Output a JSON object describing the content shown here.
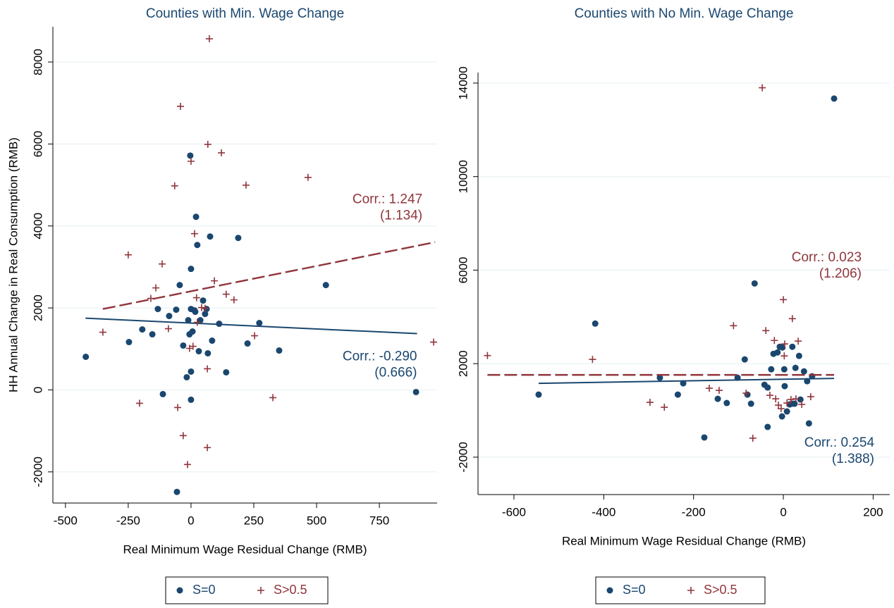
{
  "chart_data": [
    {
      "type": "scatter",
      "title": "Counties with Min. Wage Change",
      "xlabel": "Real Minimum Wage Residual Change (RMB)",
      "ylabel": "HH Annual Change in Real Consumption (RMB)",
      "xlim": [
        -550,
        980
      ],
      "ylim": [
        -2760,
        8860
      ],
      "xticks": [
        -500,
        -250,
        0,
        250,
        500,
        750
      ],
      "yticks": [
        -2000,
        0,
        2000,
        4000,
        6000,
        8000
      ],
      "grid": true,
      "legend": "bottom",
      "series": [
        {
          "name": "S=0",
          "color": "#1a476f",
          "marker": "dot",
          "x": [
            -419,
            -247,
            -194,
            -154,
            -132,
            -112,
            -87,
            -59,
            -45,
            -31,
            -17,
            -11,
            -6,
            -3,
            0,
            0,
            0,
            0,
            6,
            14,
            17,
            20,
            25,
            31,
            37,
            48,
            56,
            62,
            67,
            76,
            84,
            112,
            140,
            188,
            225,
            272,
            351,
            537,
            896,
            -56
          ],
          "values": [
            807,
            1167,
            1476,
            1356,
            1974,
            -103,
            1803,
            1957,
            2558,
            1082,
            309,
            1700,
            1356,
            5717,
            2953,
            1974,
            446,
            -240,
            1425,
            1940,
            1906,
            4223,
            3536,
            944,
            1700,
            2180,
            1854,
            1974,
            893,
            3742,
            1202,
            1614,
            429,
            3708,
            1133,
            1631,
            961,
            2558,
            -52,
            -2489
          ],
          "fit": {
            "x": [
              -420,
              900
            ],
            "values": [
              1751,
              1373
            ]
          },
          "annotation": [
            "Corr.: -0.290",
            "(0.666)"
          ]
        },
        {
          "name": "S>0.5",
          "color": "#90353b",
          "marker": "plus",
          "x": [
            -351,
            -250,
            -205,
            -160,
            -140,
            -115,
            -90,
            -65,
            -53,
            -42,
            -31,
            -14,
            0,
            -6,
            8,
            14,
            22,
            25,
            42,
            56,
            65,
            65,
            67,
            73,
            93,
            121,
            140,
            171,
            219,
            253,
            326,
            466,
            966
          ],
          "values": [
            1408,
            3296,
            -326,
            2232,
            2489,
            3073,
            1494,
            4979,
            -429,
            6918,
            -1116,
            -1820,
            5579,
            1013,
            1064,
            3811,
            2249,
            1648,
            2009,
            1991,
            -1408,
            515,
            5991,
            8567,
            2661,
            5785,
            2335,
            2197,
            4996,
            1322,
            -189,
            5185,
            1167
          ],
          "fit": {
            "x": [
              -351,
              972
            ],
            "values": [
              1974,
              3605
            ]
          },
          "annotation": [
            "Corr.: 1.247",
            "(1.134)"
          ]
        }
      ]
    },
    {
      "type": "scatter",
      "title": "Counties with No Min. Wage Change",
      "xlabel": "Real Minimum Wage Residual Change (RMB)",
      "xlim": [
        -680,
        237
      ],
      "ylim": [
        -3600,
        14450
      ],
      "xticks": [
        -600,
        -400,
        -200,
        0,
        200
      ],
      "yticks": [
        -2000,
        2000,
        6000,
        10000,
        14000
      ],
      "grid": true,
      "legend": "bottom",
      "series": [
        {
          "name": "S=0",
          "color": "#1a476f",
          "marker": "dot",
          "x": [
            -545,
            -419,
            -275,
            -235,
            -223,
            -176,
            -146,
            -126,
            -102,
            -86,
            -80,
            -72,
            -64,
            -42,
            -35,
            -35,
            -27,
            -22,
            -13,
            -8,
            -2,
            -3,
            2,
            3,
            8,
            14,
            19,
            20,
            25,
            27,
            35,
            38,
            46,
            53,
            57,
            64,
            113
          ],
          "values": [
            677,
            3714,
            1398,
            677,
            1158,
            -1158,
            496,
            316,
            1398,
            2180,
            677,
            286,
            5429,
            1098,
            977,
            -707,
            1759,
            2421,
            2481,
            2722,
            2692,
            -256,
            1759,
            1038,
            -45,
            256,
            286,
            2722,
            286,
            1820,
            2331,
            466,
            1669,
            1248,
            -556,
            1459,
            13338
          ],
          "fit": {
            "x": [
              -545,
              113
            ],
            "values": [
              1158,
              1368
            ]
          },
          "annotation": [
            "Corr.: 0.254",
            "(1.388)"
          ]
        },
        {
          "name": "S>0.5",
          "color": "#90353b",
          "marker": "plus",
          "x": [
            -659,
            -425,
            -297,
            -265,
            -165,
            -143,
            -111,
            -83,
            -68,
            -39,
            -30,
            -20,
            -17,
            -11,
            -5,
            0,
            2,
            3,
            8,
            17,
            20,
            28,
            33,
            41,
            61,
            -47
          ],
          "values": [
            2346,
            2180,
            346,
            135,
            947,
            857,
            3624,
            737,
            -1188,
            3413,
            647,
            2992,
            496,
            226,
            75,
            4737,
            2331,
            2842,
            316,
            466,
            3925,
            496,
            2962,
            256,
            586,
            13800
          ],
          "fit": {
            "x": [
              -659,
              113
            ],
            "values": [
              1519,
              1519
            ]
          },
          "annotation": [
            "Corr.: 0.023",
            "(1.206)"
          ]
        }
      ]
    }
  ]
}
